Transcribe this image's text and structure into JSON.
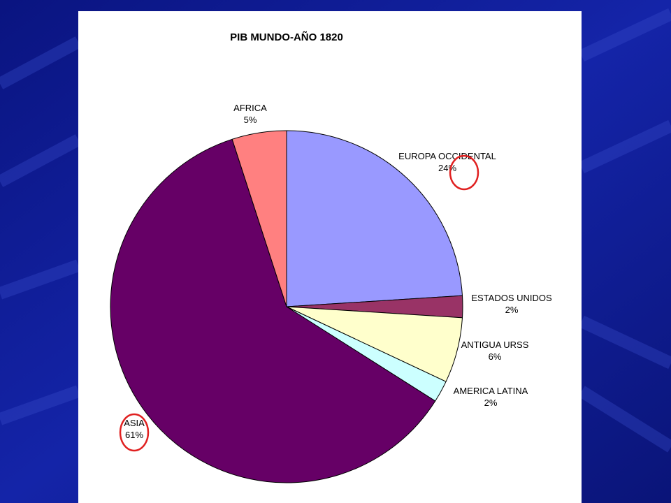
{
  "chart_data": {
    "type": "pie",
    "title": "PIB MUNDO-AÑO 1820",
    "slices": [
      {
        "label": "EUROPA OCCIDENTAL",
        "value": 24,
        "pct_text": "24%",
        "color": "#9999ff"
      },
      {
        "label": "ESTADOS UNIDOS",
        "value": 2,
        "pct_text": "2%",
        "color": "#993366"
      },
      {
        "label": "ANTIGUA URSS",
        "value": 6,
        "pct_text": "6%",
        "color": "#ffffcc"
      },
      {
        "label": "AMERICA LATINA",
        "value": 2,
        "pct_text": "2%",
        "color": "#ccffff"
      },
      {
        "label": "ASIA",
        "value": 61,
        "pct_text": "61%",
        "color": "#660066"
      },
      {
        "label": "AFRICA",
        "value": 5,
        "pct_text": "5%",
        "color": "#ff8080"
      }
    ],
    "start_angle_deg": 0,
    "direction": "clockwise",
    "highlighted": [
      "EUROPA OCCIDENTAL",
      "ASIA"
    ],
    "highlight_color": "#e02020"
  },
  "colors": {
    "background": "#0d1a8c",
    "panel": "#ffffff",
    "slice_stroke": "#000000"
  }
}
